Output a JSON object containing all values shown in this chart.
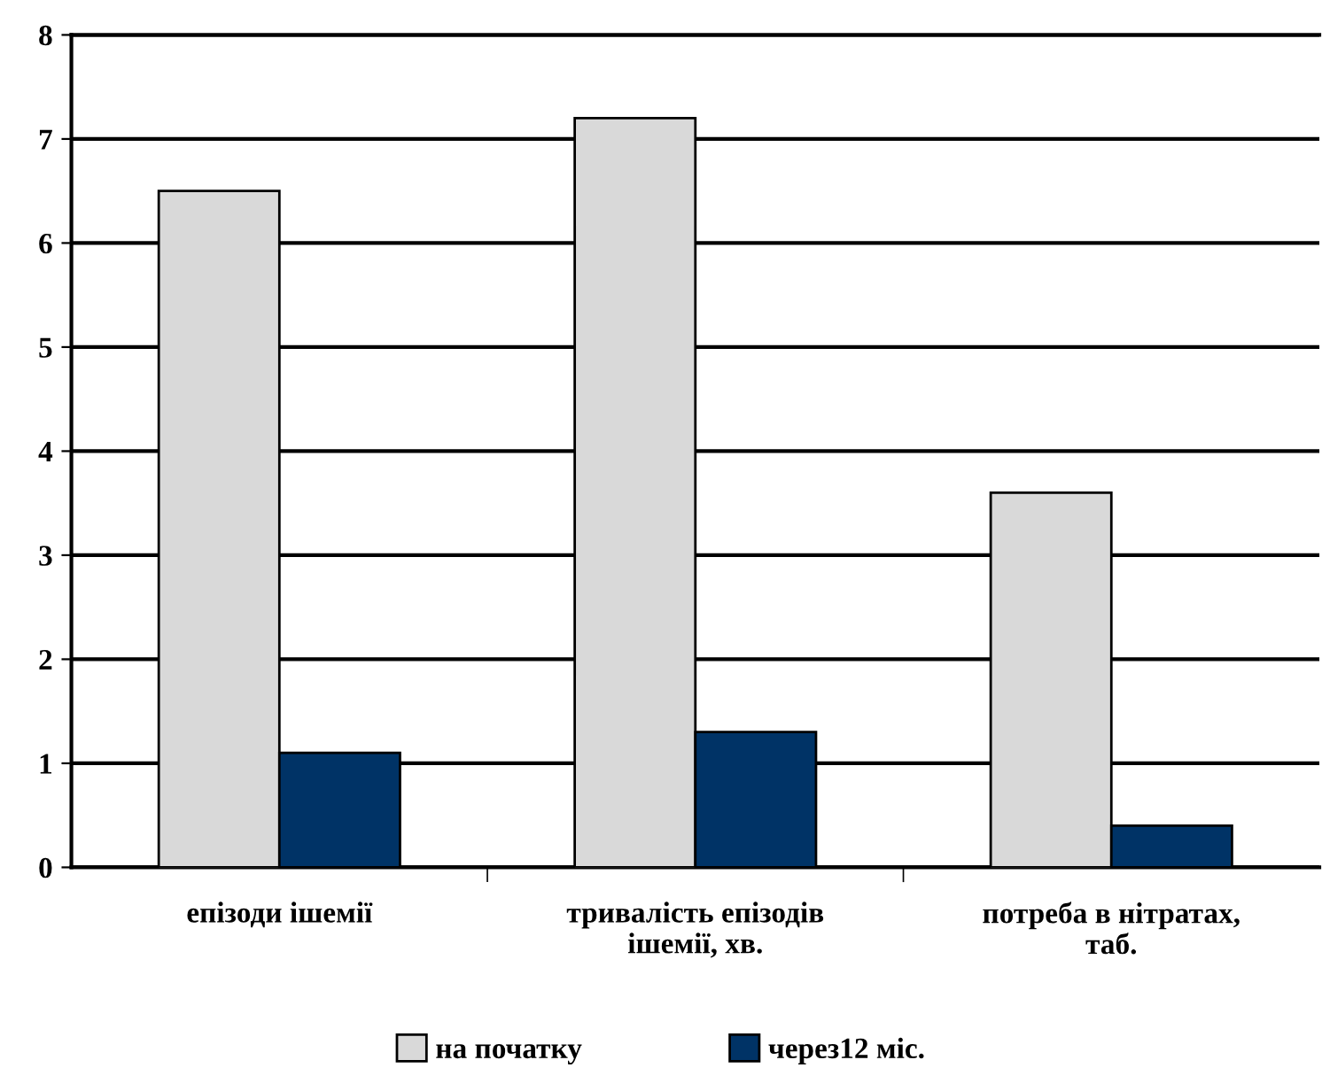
{
  "chart_data": {
    "type": "bar",
    "categories": [
      "епізоди ішемії",
      "тривалість епізодів\nішемії, хв.",
      "потреба в нітратах,\nтаб."
    ],
    "series": [
      {
        "name": "на початку",
        "color": "#d9d9d9",
        "values": [
          6.5,
          7.2,
          3.6
        ]
      },
      {
        "name": "через12 міс.",
        "color": "#003366",
        "values": [
          1.1,
          1.3,
          0.4
        ]
      }
    ],
    "ylim": [
      0,
      8
    ],
    "yticks": [
      0,
      1,
      2,
      3,
      4,
      5,
      6,
      7,
      8
    ],
    "grid": "y",
    "legend": "bottom"
  }
}
